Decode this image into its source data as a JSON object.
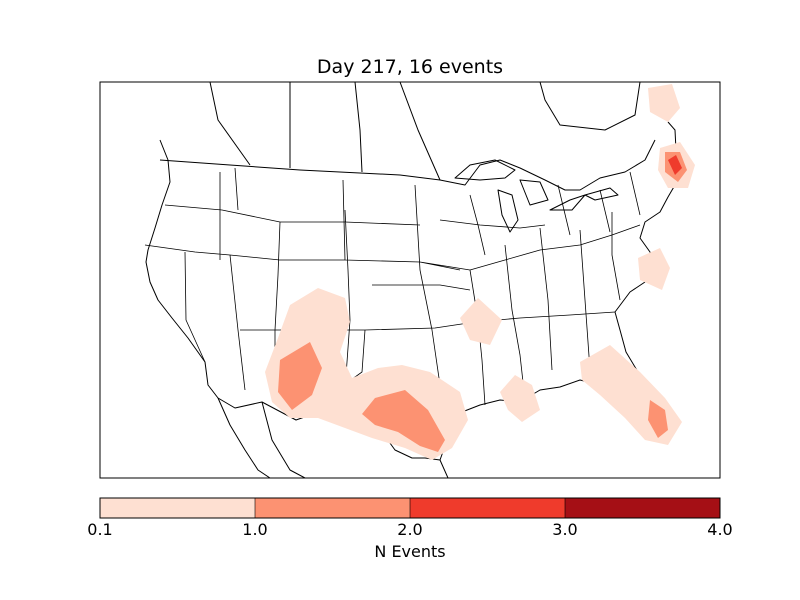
{
  "title": "Day 217, 16 events",
  "colorbar": {
    "label": "N Events",
    "ticks": [
      "0.1",
      "1.0",
      "2.0",
      "3.0",
      "4.0"
    ],
    "colors": [
      "#fee0d2",
      "#fc9272",
      "#ef3b2c",
      "#a50f15"
    ]
  },
  "map": {
    "region": "continental United States",
    "background": "#ffffff",
    "outline": "#000000"
  }
}
